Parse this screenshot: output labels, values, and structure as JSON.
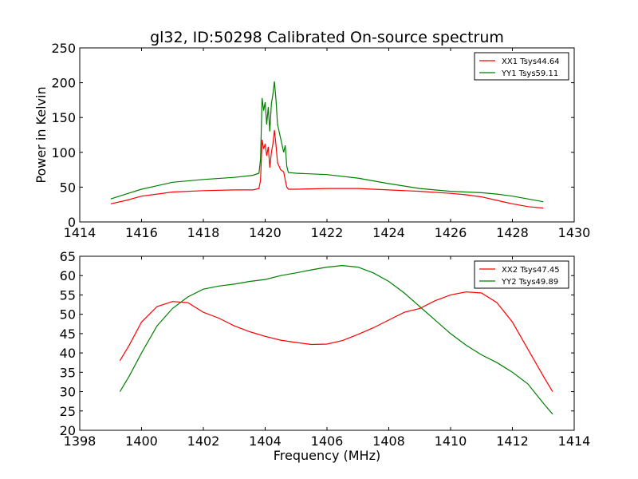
{
  "title": "gl32, ID:50298 Calibrated On-source spectrum",
  "colors": {
    "XX": "#ff0000",
    "YY": "#007f00"
  },
  "chart_data": [
    {
      "type": "line",
      "name": "top",
      "xlabel": "",
      "ylabel": "Power in Kelvin",
      "xlim": [
        1414,
        1430
      ],
      "ylim": [
        0,
        250
      ],
      "xticks": [
        1414,
        1416,
        1418,
        1420,
        1422,
        1424,
        1426,
        1428,
        1430
      ],
      "yticks": [
        0,
        50,
        100,
        150,
        200,
        250
      ],
      "legend_position": "top-right",
      "series": [
        {
          "name": "XX1 Tsys44.64",
          "color": "#ff0000",
          "points": [
            [
              1415,
              26
            ],
            [
              1415.5,
              31
            ],
            [
              1416,
              37
            ],
            [
              1416.5,
              40
            ],
            [
              1417,
              43
            ],
            [
              1418,
              45
            ],
            [
              1419,
              46
            ],
            [
              1419.6,
              46
            ],
            [
              1419.8,
              48
            ],
            [
              1419.85,
              60
            ],
            [
              1419.9,
              118
            ],
            [
              1419.95,
              105
            ],
            [
              1420.0,
              112
            ],
            [
              1420.05,
              95
            ],
            [
              1420.1,
              108
            ],
            [
              1420.15,
              78
            ],
            [
              1420.2,
              100
            ],
            [
              1420.25,
              112
            ],
            [
              1420.3,
              132
            ],
            [
              1420.35,
              110
            ],
            [
              1420.4,
              85
            ],
            [
              1420.5,
              75
            ],
            [
              1420.6,
              72
            ],
            [
              1420.65,
              60
            ],
            [
              1420.7,
              50
            ],
            [
              1420.75,
              47
            ],
            [
              1421,
              47
            ],
            [
              1422,
              48
            ],
            [
              1423,
              48
            ],
            [
              1424,
              46
            ],
            [
              1425,
              44
            ],
            [
              1426,
              41
            ],
            [
              1426.5,
              39
            ],
            [
              1427,
              36
            ],
            [
              1427.5,
              31
            ],
            [
              1428,
              26
            ],
            [
              1428.5,
              22
            ],
            [
              1429,
              20
            ]
          ]
        },
        {
          "name": "YY1 Tsys59.11",
          "color": "#007f00",
          "points": [
            [
              1415,
              33
            ],
            [
              1415.5,
              40
            ],
            [
              1416,
              47
            ],
            [
              1416.5,
              52
            ],
            [
              1417,
              57
            ],
            [
              1418,
              61
            ],
            [
              1419,
              64
            ],
            [
              1419.6,
              67
            ],
            [
              1419.8,
              70
            ],
            [
              1419.85,
              90
            ],
            [
              1419.9,
              178
            ],
            [
              1419.95,
              160
            ],
            [
              1420.0,
              172
            ],
            [
              1420.05,
              140
            ],
            [
              1420.1,
              165
            ],
            [
              1420.15,
              130
            ],
            [
              1420.2,
              170
            ],
            [
              1420.25,
              183
            ],
            [
              1420.3,
              202
            ],
            [
              1420.35,
              175
            ],
            [
              1420.4,
              140
            ],
            [
              1420.5,
              120
            ],
            [
              1420.6,
              100
            ],
            [
              1420.65,
              110
            ],
            [
              1420.7,
              80
            ],
            [
              1420.75,
              71
            ],
            [
              1421,
              70
            ],
            [
              1422,
              68
            ],
            [
              1423,
              63
            ],
            [
              1424,
              55
            ],
            [
              1425,
              48
            ],
            [
              1426,
              44
            ],
            [
              1427,
              42
            ],
            [
              1427.5,
              40
            ],
            [
              1428,
              37
            ],
            [
              1428.5,
              33
            ],
            [
              1429,
              29
            ]
          ]
        }
      ]
    },
    {
      "type": "line",
      "name": "bottom",
      "xlabel": "Frequency (MHz)",
      "ylabel": "",
      "xlim": [
        1398,
        1414
      ],
      "ylim": [
        20,
        65
      ],
      "xticks": [
        1398,
        1400,
        1402,
        1404,
        1406,
        1408,
        1410,
        1412,
        1414
      ],
      "yticks": [
        20,
        25,
        30,
        35,
        40,
        45,
        50,
        55,
        60,
        65
      ],
      "legend_position": "top-right",
      "series": [
        {
          "name": "XX2 Tsys47.45",
          "color": "#ff0000",
          "points": [
            [
              1399.3,
              38
            ],
            [
              1399.6,
              42
            ],
            [
              1400,
              48
            ],
            [
              1400.5,
              52
            ],
            [
              1401,
              53.3
            ],
            [
              1401.5,
              53
            ],
            [
              1402,
              50.5
            ],
            [
              1402.5,
              49
            ],
            [
              1403,
              47
            ],
            [
              1403.5,
              45.5
            ],
            [
              1404,
              44.3
            ],
            [
              1404.5,
              43.3
            ],
            [
              1405,
              42.7
            ],
            [
              1405.5,
              42.2
            ],
            [
              1406,
              42.3
            ],
            [
              1406.5,
              43.2
            ],
            [
              1407,
              44.8
            ],
            [
              1407.5,
              46.5
            ],
            [
              1408,
              48.5
            ],
            [
              1408.5,
              50.5
            ],
            [
              1409,
              51.5
            ],
            [
              1409.5,
              53.5
            ],
            [
              1410,
              55
            ],
            [
              1410.5,
              55.8
            ],
            [
              1411,
              55.5
            ],
            [
              1411.5,
              53
            ],
            [
              1412,
              48
            ],
            [
              1412.5,
              41
            ],
            [
              1413,
              34
            ],
            [
              1413.3,
              30
            ]
          ]
        },
        {
          "name": "YY2 Tsys49.89",
          "color": "#007f00",
          "points": [
            [
              1399.3,
              30
            ],
            [
              1399.6,
              34
            ],
            [
              1400,
              40
            ],
            [
              1400.5,
              47
            ],
            [
              1401,
              51.5
            ],
            [
              1401.5,
              54.5
            ],
            [
              1402,
              56.5
            ],
            [
              1402.5,
              57.3
            ],
            [
              1403,
              57.8
            ],
            [
              1403.5,
              58.5
            ],
            [
              1404,
              59
            ],
            [
              1404.5,
              60
            ],
            [
              1405,
              60.7
            ],
            [
              1405.5,
              61.5
            ],
            [
              1406,
              62.2
            ],
            [
              1406.5,
              62.6
            ],
            [
              1407,
              62.2
            ],
            [
              1407.5,
              60.7
            ],
            [
              1408,
              58.5
            ],
            [
              1408.5,
              55.5
            ],
            [
              1409,
              52
            ],
            [
              1409.5,
              48.5
            ],
            [
              1410,
              45
            ],
            [
              1410.5,
              42
            ],
            [
              1411,
              39.5
            ],
            [
              1411.5,
              37.5
            ],
            [
              1412,
              35
            ],
            [
              1412.5,
              32
            ],
            [
              1413,
              27
            ],
            [
              1413.3,
              24.2
            ]
          ]
        }
      ]
    }
  ]
}
